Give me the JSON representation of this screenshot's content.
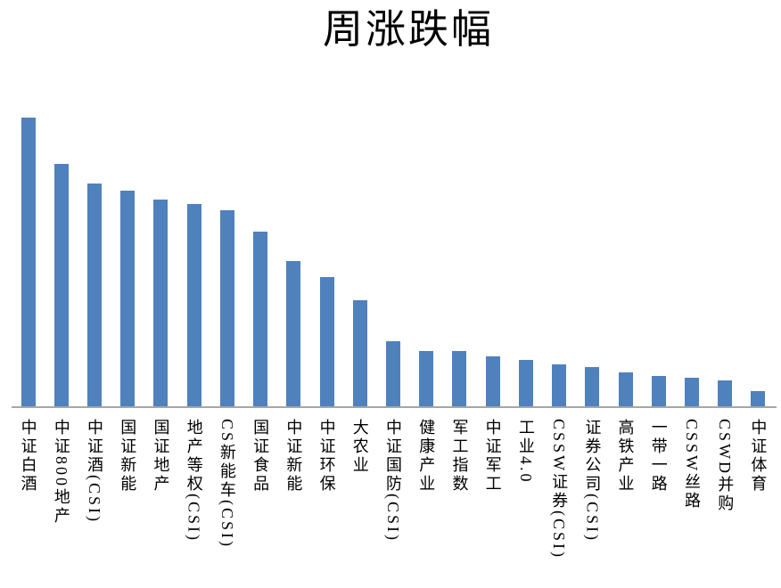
{
  "page": {
    "background": "#ffffff"
  },
  "chart": {
    "bar_color": "#4F81BD",
    "axis_color": "#A6A6A6",
    "title_color": "#000000"
  },
  "chart_data": {
    "type": "bar",
    "title": "周涨跌幅",
    "xlabel": "",
    "ylabel": "",
    "value_unit": "relative bar height (no value axis labels shown in chart; max bar = 1.0)",
    "grid": false,
    "legend": "none",
    "y_axis_labels_visible": false,
    "x_tick_label_orientation": "vertical",
    "sort_order": "descending",
    "categories": [
      "中证白酒",
      "中证800地产",
      "中证酒(CSI)",
      "国证新能",
      "国证地产",
      "地产等权(CSI)",
      "CS新能车(CSI)",
      "国证食品",
      "中证新能",
      "中证环保",
      "大农业",
      "中证国防(CSI)",
      "健康产业",
      "军工指数",
      "中证军工",
      "工业4.0",
      "CSSW证券(CSI)",
      "证券公司(CSI)",
      "高铁产业",
      "一带一路",
      "CSSW丝路",
      "CSWD并购",
      "中证体育"
    ],
    "values": [
      1.0,
      0.84,
      0.772,
      0.747,
      0.716,
      0.7,
      0.679,
      0.605,
      0.503,
      0.448,
      0.367,
      0.225,
      0.191,
      0.191,
      0.173,
      0.16,
      0.145,
      0.136,
      0.117,
      0.105,
      0.099,
      0.09,
      0.052
    ]
  }
}
